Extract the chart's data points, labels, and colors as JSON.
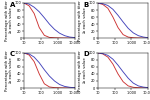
{
  "panels": [
    {
      "label": "A",
      "red_x": [
        10,
        20,
        40,
        80,
        160,
        320,
        640,
        1280,
        2560,
        5120,
        10240
      ],
      "red_y": [
        100,
        92,
        70,
        30,
        8,
        2,
        1,
        0.5,
        0.3,
        0.2,
        0.1
      ],
      "blue_x": [
        10,
        20,
        40,
        80,
        160,
        320,
        640,
        1280,
        2560,
        5120,
        10240
      ],
      "blue_y": [
        100,
        97,
        88,
        75,
        58,
        40,
        25,
        14,
        7,
        3,
        1.5
      ]
    },
    {
      "label": "B",
      "red_x": [
        10,
        20,
        40,
        80,
        160,
        320,
        640,
        1280,
        2560,
        5120,
        10240
      ],
      "red_y": [
        100,
        96,
        85,
        60,
        30,
        10,
        3,
        1,
        0.4,
        0.2,
        0.1
      ],
      "blue_x": [
        10,
        20,
        40,
        80,
        160,
        320,
        640,
        1280,
        2560,
        5120,
        10240
      ],
      "blue_y": [
        100,
        98,
        93,
        82,
        65,
        46,
        28,
        15,
        7,
        3,
        1
      ]
    },
    {
      "label": "C",
      "red_x": [
        10,
        20,
        40,
        80,
        160,
        320,
        640,
        1280,
        2560,
        5120,
        10240
      ],
      "red_y": [
        100,
        94,
        75,
        40,
        12,
        3,
        1,
        0.5,
        0.2,
        0.1,
        0.05
      ],
      "blue_x": [
        10,
        20,
        40,
        80,
        160,
        320,
        640,
        1280,
        2560,
        5120,
        10240
      ],
      "blue_y": [
        100,
        97,
        88,
        72,
        52,
        34,
        20,
        10,
        4.5,
        2,
        0.8
      ]
    },
    {
      "label": "D",
      "red_x": [
        10,
        20,
        40,
        80,
        160,
        320,
        640,
        1280,
        2560,
        5120,
        10240
      ],
      "red_y": [
        100,
        97,
        88,
        68,
        40,
        18,
        6,
        2,
        0.8,
        0.3,
        0.1
      ],
      "blue_x": [
        10,
        20,
        40,
        80,
        160,
        320,
        640,
        1280,
        2560,
        5120,
        10240
      ],
      "blue_y": [
        100,
        98,
        93,
        82,
        65,
        46,
        28,
        14,
        6,
        2.5,
        1
      ]
    }
  ],
  "red_color": "#cc3333",
  "blue_color": "#4444bb",
  "background": "#ffffff",
  "xlim": [
    10,
    10240
  ],
  "ylim": [
    0,
    100
  ],
  "tick_fontsize": 2.5,
  "ylabel_fontsize": 2.8,
  "label_fontsize": 5,
  "linewidth": 0.65,
  "spine_lw": 0.35
}
